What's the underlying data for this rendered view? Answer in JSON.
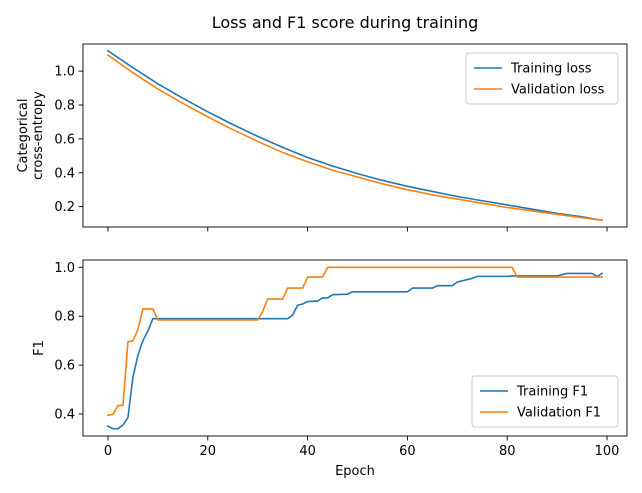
{
  "figure": {
    "title": "Loss and F1 score during training"
  },
  "chart_data": [
    {
      "type": "line",
      "ylabel_lines": [
        "Categorical",
        "cross-entropy"
      ],
      "xlabel": "",
      "xlim": [
        -5,
        104
      ],
      "ylim": [
        0.08,
        1.16
      ],
      "xticks": [
        0,
        20,
        40,
        60,
        80,
        100
      ],
      "show_xtick_labels": false,
      "yticks": [
        0.2,
        0.4,
        0.6,
        0.8,
        1.0
      ],
      "ytick_labels": [
        "0.2",
        "0.4",
        "0.6",
        "0.8",
        "1.0"
      ],
      "grid": false,
      "legend_position": "upper right",
      "series": [
        {
          "name": "Training loss",
          "color": "#1f77b4",
          "x": [
            0,
            5,
            10,
            15,
            20,
            25,
            30,
            35,
            40,
            45,
            50,
            55,
            60,
            65,
            70,
            75,
            80,
            85,
            90,
            95,
            99
          ],
          "y": [
            1.12,
            1.02,
            0.925,
            0.84,
            0.76,
            0.685,
            0.615,
            0.55,
            0.49,
            0.44,
            0.395,
            0.355,
            0.32,
            0.29,
            0.26,
            0.235,
            0.21,
            0.185,
            0.16,
            0.14,
            0.12
          ]
        },
        {
          "name": "Validation loss",
          "color": "#ff7f0e",
          "x": [
            0,
            5,
            10,
            15,
            20,
            25,
            30,
            35,
            40,
            45,
            50,
            55,
            60,
            65,
            70,
            75,
            80,
            85,
            90,
            95,
            99
          ],
          "y": [
            1.095,
            0.99,
            0.895,
            0.81,
            0.73,
            0.655,
            0.585,
            0.52,
            0.465,
            0.415,
            0.375,
            0.335,
            0.3,
            0.27,
            0.245,
            0.22,
            0.195,
            0.175,
            0.155,
            0.135,
            0.12
          ]
        }
      ]
    },
    {
      "type": "line",
      "ylabel_lines": [
        "F1"
      ],
      "xlabel": "Epoch",
      "xlim": [
        -5,
        104
      ],
      "ylim": [
        0.31,
        1.03
      ],
      "xticks": [
        0,
        20,
        40,
        60,
        80,
        100
      ],
      "xtick_labels": [
        "0",
        "20",
        "40",
        "60",
        "80",
        "100"
      ],
      "show_xtick_labels": true,
      "yticks": [
        0.4,
        0.6,
        0.8,
        1.0
      ],
      "ytick_labels": [
        "0.4",
        "0.6",
        "0.8",
        "1.0"
      ],
      "grid": false,
      "legend_position": "lower right",
      "series": [
        {
          "name": "Training F1",
          "color": "#1f77b4",
          "x": [
            0,
            1,
            2,
            3,
            4,
            5,
            6,
            7,
            8,
            9,
            10,
            20,
            30,
            35,
            36,
            37,
            38,
            39,
            40,
            42,
            43,
            44,
            45,
            48,
            49,
            55,
            60,
            61,
            65,
            66,
            69,
            70,
            72,
            73,
            74,
            80,
            81,
            90,
            92,
            97,
            98,
            99
          ],
          "y": [
            0.35,
            0.34,
            0.34,
            0.355,
            0.385,
            0.55,
            0.64,
            0.7,
            0.74,
            0.79,
            0.79,
            0.79,
            0.79,
            0.79,
            0.79,
            0.805,
            0.845,
            0.85,
            0.86,
            0.862,
            0.875,
            0.875,
            0.888,
            0.89,
            0.9,
            0.9,
            0.9,
            0.915,
            0.915,
            0.925,
            0.925,
            0.94,
            0.95,
            0.955,
            0.963,
            0.963,
            0.965,
            0.965,
            0.975,
            0.975,
            0.963,
            0.975
          ]
        },
        {
          "name": "Validation F1",
          "color": "#ff7f0e",
          "x": [
            0,
            1,
            2,
            3,
            4,
            5,
            6,
            7,
            8,
            9,
            10,
            20,
            30,
            31,
            32,
            33,
            35,
            36,
            39,
            40,
            43,
            44,
            45,
            80,
            81,
            82,
            99
          ],
          "y": [
            0.395,
            0.398,
            0.435,
            0.435,
            0.695,
            0.7,
            0.745,
            0.83,
            0.83,
            0.83,
            0.785,
            0.785,
            0.785,
            0.82,
            0.87,
            0.87,
            0.87,
            0.915,
            0.915,
            0.96,
            0.96,
            1.0,
            1.0,
            1.0,
            1.0,
            0.96,
            0.96
          ]
        }
      ]
    }
  ]
}
